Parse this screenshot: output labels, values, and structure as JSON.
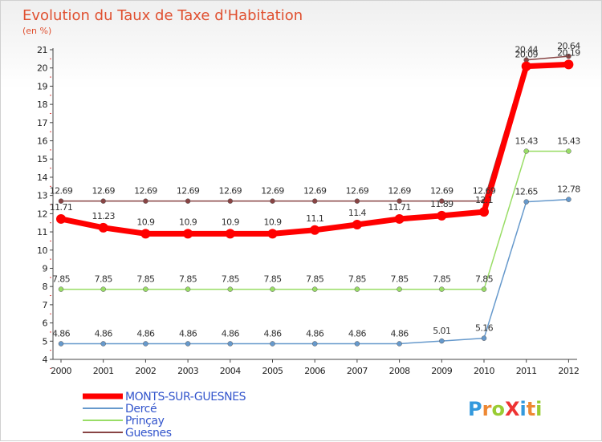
{
  "chart_data": {
    "type": "line",
    "title": "Evolution du Taux de Taxe d'Habitation",
    "subtitle": "(en %)",
    "x": [
      "2000",
      "2001",
      "2002",
      "2003",
      "2004",
      "2005",
      "2006",
      "2007",
      "2008",
      "2009",
      "2010",
      "2011",
      "2012"
    ],
    "ylim": [
      4,
      21
    ],
    "yticks": [
      4,
      5,
      6,
      7,
      8,
      9,
      10,
      11,
      12,
      13,
      14,
      15,
      16,
      17,
      18,
      19,
      20,
      21
    ],
    "grid": false,
    "legend_position": "bottom-left",
    "series": [
      {
        "name": "MONTS-SUR-GUESNES",
        "color": "#ff0000",
        "values": [
          11.71,
          11.23,
          10.9,
          10.9,
          10.9,
          10.9,
          11.1,
          11.4,
          11.71,
          11.89,
          12.1,
          20.09,
          20.19
        ],
        "labels": [
          "11.71",
          "11.23",
          "10.9",
          "10.9",
          "10.9",
          "10.9",
          "11.1",
          "11.4",
          "11.71",
          "11.89",
          "12.1",
          "20.09",
          "20.19"
        ]
      },
      {
        "name": "Dercé",
        "color": "#6699cc",
        "values": [
          4.86,
          4.86,
          4.86,
          4.86,
          4.86,
          4.86,
          4.86,
          4.86,
          4.86,
          5.01,
          5.16,
          12.65,
          12.78
        ],
        "labels": [
          "4.86",
          "4.86",
          "4.86",
          "4.86",
          "4.86",
          "4.86",
          "4.86",
          "4.86",
          "4.86",
          "5.01",
          "5.16",
          "12.65",
          "12.78"
        ]
      },
      {
        "name": "Prinçay",
        "color": "#99dd66",
        "values": [
          7.85,
          7.85,
          7.85,
          7.85,
          7.85,
          7.85,
          7.85,
          7.85,
          7.85,
          7.85,
          7.85,
          15.43,
          15.43
        ],
        "labels": [
          "7.85",
          "7.85",
          "7.85",
          "7.85",
          "7.85",
          "7.85",
          "7.85",
          "7.85",
          "7.85",
          "7.85",
          "7.85",
          "15.43",
          "15.43"
        ]
      },
      {
        "name": "Guesnes",
        "color": "#884444",
        "values": [
          12.69,
          12.69,
          12.69,
          12.69,
          12.69,
          12.69,
          12.69,
          12.69,
          12.69,
          12.69,
          12.69,
          20.44,
          20.64
        ],
        "labels": [
          "12.69",
          "12.69",
          "12.69",
          "12.69",
          "12.69",
          "12.69",
          "12.69",
          "12.69",
          "12.69",
          "12.69",
          "12.69",
          "20.44",
          "20.64"
        ]
      }
    ]
  },
  "branding": {
    "logo_text": "ProXiti",
    "logo_letters": [
      {
        "ch": "P",
        "color": "#3399dd"
      },
      {
        "ch": "r",
        "color": "#ee8833"
      },
      {
        "ch": "o",
        "color": "#99cc33"
      },
      {
        "ch": "X",
        "color": "#ee3333"
      },
      {
        "ch": "i",
        "color": "#3399dd"
      },
      {
        "ch": "t",
        "color": "#ee8833"
      },
      {
        "ch": "i",
        "color": "#99cc33"
      }
    ]
  }
}
